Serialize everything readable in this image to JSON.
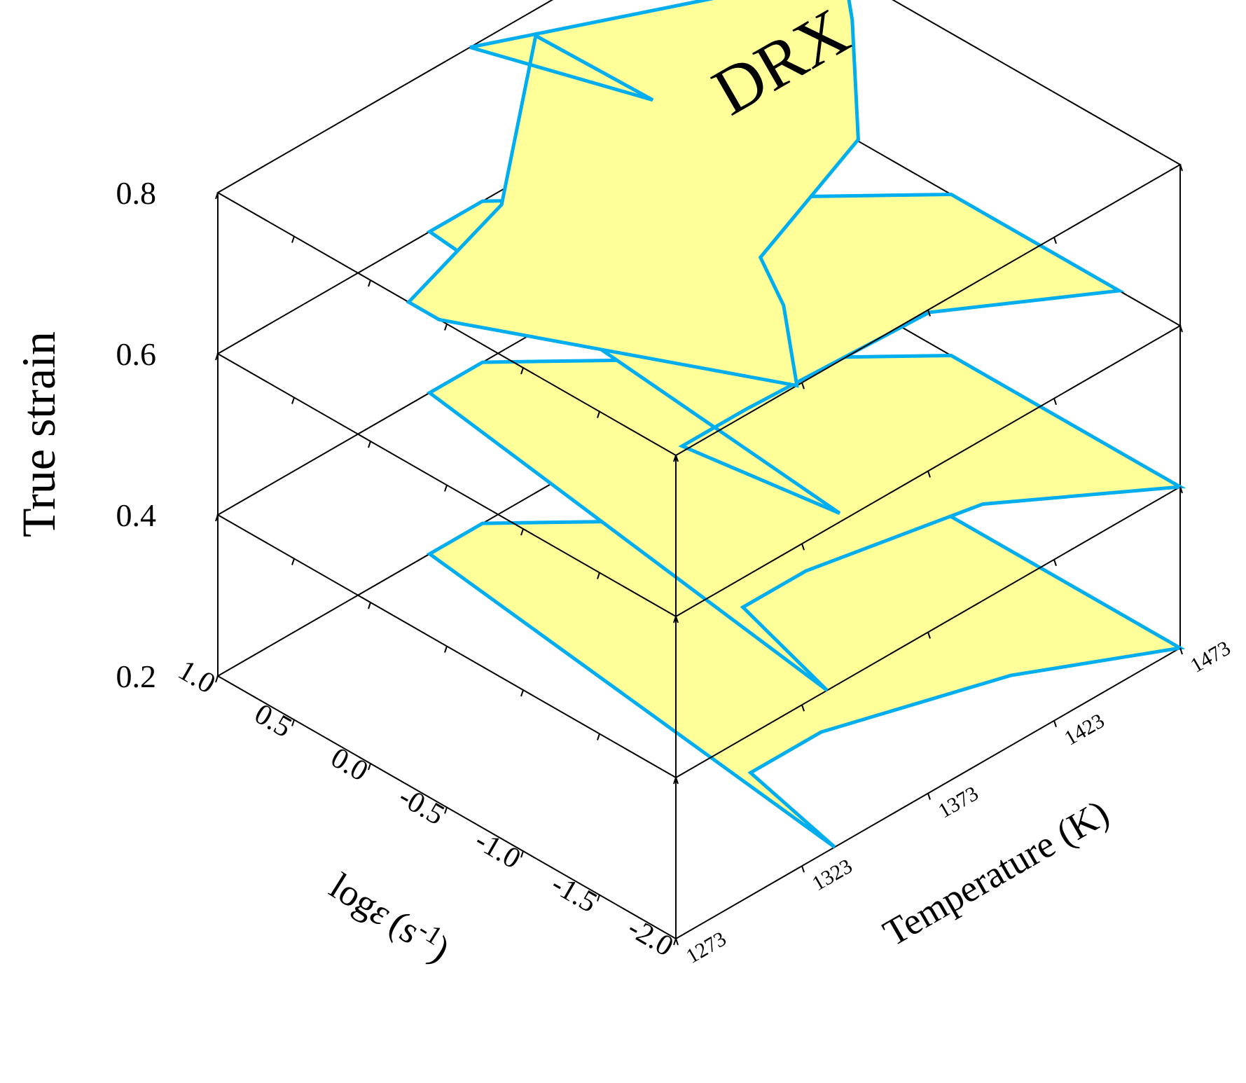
{
  "chart_data": {
    "type": "3d-stacked-contour",
    "title": "",
    "region_label": "DRX",
    "colors": {
      "region_fill": "#FFFF99",
      "region_border": "#00AEEF",
      "axis": "#000000"
    },
    "z_axis": {
      "label": "True strain",
      "ticks": [
        "0.2",
        "0.4",
        "0.6",
        "0.8"
      ],
      "range": [
        0.2,
        0.8
      ]
    },
    "x_axis": {
      "label": "Temperature (K)",
      "ticks": [
        "1273",
        "1323",
        "1373",
        "1423",
        "1473"
      ],
      "range": [
        1273,
        1473
      ]
    },
    "y_axis": {
      "label_prefix": "log",
      "label_var": "ε",
      "label_unit": "(s",
      "label_exp": "-1",
      "label_close": ")",
      "ticks": [
        "1.0",
        "0.5",
        "0.0",
        "-0.5",
        "-1.0",
        "-1.5",
        "-2.0"
      ],
      "range": [
        1.0,
        -2.0
      ]
    },
    "layers": [
      {
        "strain": 0.2,
        "region": [
          [
            1336,
            -2.0
          ],
          [
            1345,
            -1.3
          ],
          [
            1373,
            -1.3
          ],
          [
            1430,
            -1.6
          ],
          [
            1473,
            -2.0
          ],
          [
            1473,
            -0.5
          ],
          [
            1378,
            1.0
          ],
          [
            1357,
            1.0
          ]
        ]
      },
      {
        "strain": 0.4,
        "region": [
          [
            1333,
            -2.0
          ],
          [
            1345,
            -1.25
          ],
          [
            1370,
            -1.25
          ],
          [
            1428,
            -1.45
          ],
          [
            1473,
            -2.0
          ],
          [
            1473,
            -0.5
          ],
          [
            1378,
            1.0
          ],
          [
            1357,
            1.0
          ]
        ]
      },
      {
        "strain": 0.6,
        "region": [
          [
            1341,
            -1.95
          ],
          [
            1333,
            -1.05
          ],
          [
            1358,
            -1.05
          ],
          [
            1428,
            -1.1
          ],
          [
            1473,
            -1.6
          ],
          [
            1473,
            -0.5
          ],
          [
            1378,
            1.0
          ],
          [
            1357,
            1.0
          ]
        ]
      },
      {
        "strain": 0.8,
        "region": [
          [
            1273,
            -0.45
          ],
          [
            1273,
            -0.25
          ],
          [
            1325,
            0.0
          ],
          [
            1390,
            0.85
          ],
          [
            1391,
            0.1
          ],
          [
            1373,
            1.0
          ],
          [
            1473,
            0.2
          ],
          [
            1458,
            -0.1
          ],
          [
            1418,
            -0.8
          ],
          [
            1358,
            -1.15
          ],
          [
            1346,
            -1.5
          ],
          [
            1321,
            -2.0
          ]
        ]
      }
    ]
  }
}
